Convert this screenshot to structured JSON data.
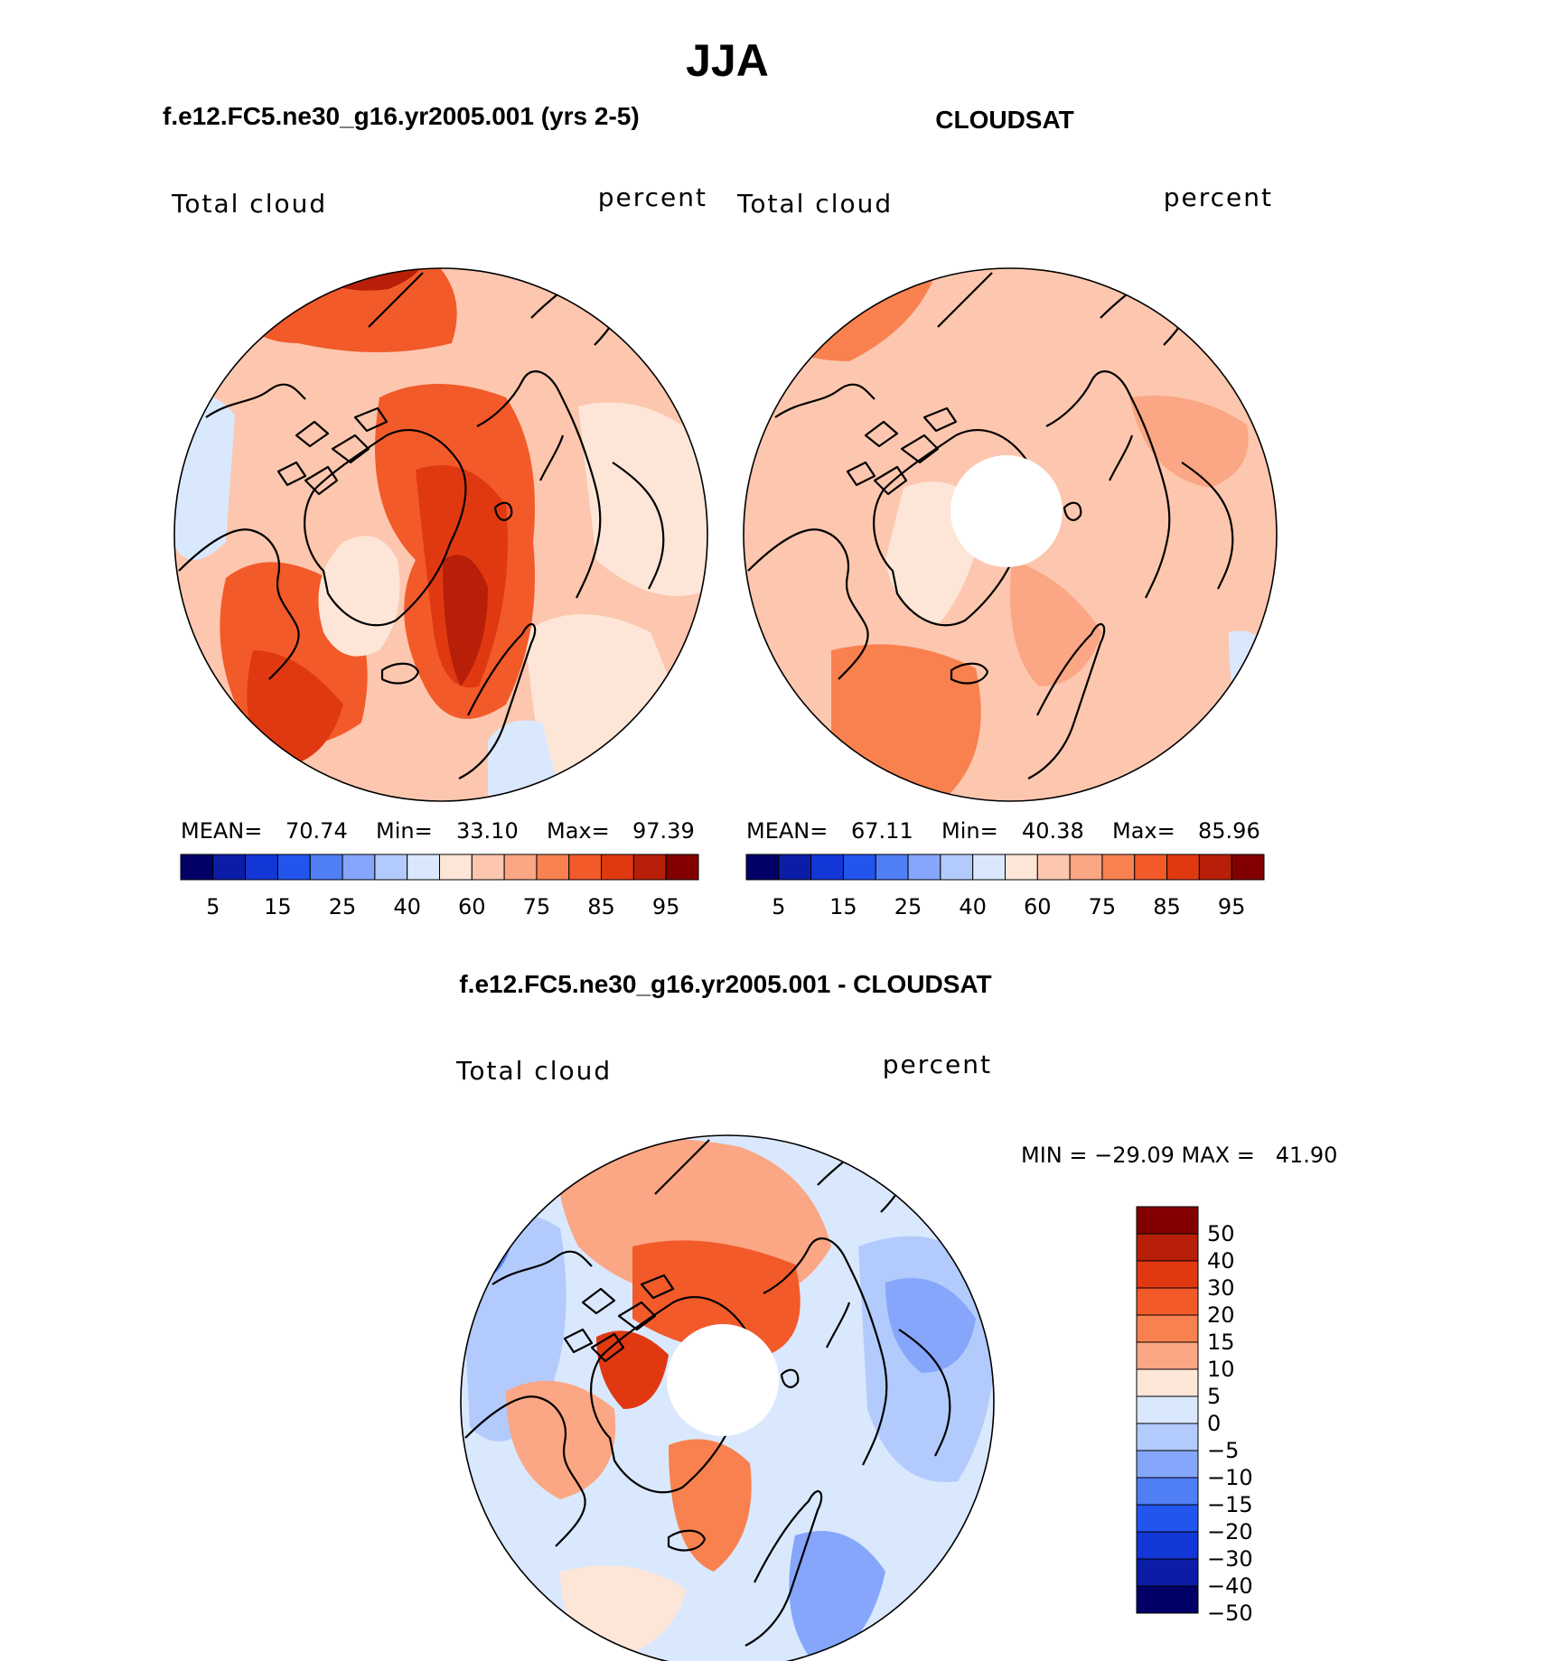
{
  "title": "JJA",
  "panels": [
    {
      "id": "model",
      "header": "f.e12.FC5.ne30_g16.yr2005.001 (yrs 2-5)",
      "left_label": "Total cloud",
      "right_label": "percent",
      "stats": {
        "mean_label": "MEAN=",
        "mean": "70.74",
        "min_label": "Min=",
        "min": "33.10",
        "max_label": "Max=",
        "max": "97.39"
      }
    },
    {
      "id": "obs",
      "header": "CLOUDSAT",
      "left_label": "Total cloud",
      "right_label": "percent",
      "stats": {
        "mean_label": "MEAN=",
        "mean": "67.11",
        "min_label": "Min=",
        "min": "40.38",
        "max_label": "Max=",
        "max": "85.96"
      }
    }
  ],
  "diff_panel": {
    "header": "f.e12.FC5.ne30_g16.yr2005.001 - CLOUDSAT",
    "left_label": "Total cloud",
    "right_label": "percent",
    "minmax": "MIN = −29.09 MAX =   41.90"
  },
  "abs_colorbar": {
    "colors": [
      "#000066",
      "#0b1da6",
      "#1237d6",
      "#2255ee",
      "#4f7ef5",
      "#85a6fa",
      "#b3cbfc",
      "#dae8fd",
      "#fde6d8",
      "#fcc7ae",
      "#fba684",
      "#f8814f",
      "#f25a2a",
      "#e03912",
      "#b71f08",
      "#820000"
    ],
    "tick_labels": [
      "5",
      "15",
      "25",
      "40",
      "60",
      "75",
      "85",
      "95"
    ]
  },
  "diff_colorbar": {
    "colors": [
      "#820000",
      "#b71f08",
      "#e03912",
      "#f25a2a",
      "#f8814f",
      "#fba684",
      "#fde6d8",
      "#dae8fd",
      "#b3cbfc",
      "#85a6fa",
      "#4f7ef5",
      "#2255ee",
      "#1237d6",
      "#0b1da6",
      "#000066"
    ],
    "tick_labels": [
      "50",
      "40",
      "30",
      "20",
      "15",
      "10",
      "5",
      "0",
      "−5",
      "−10",
      "−15",
      "−20",
      "−30",
      "−40",
      "−50"
    ]
  }
}
